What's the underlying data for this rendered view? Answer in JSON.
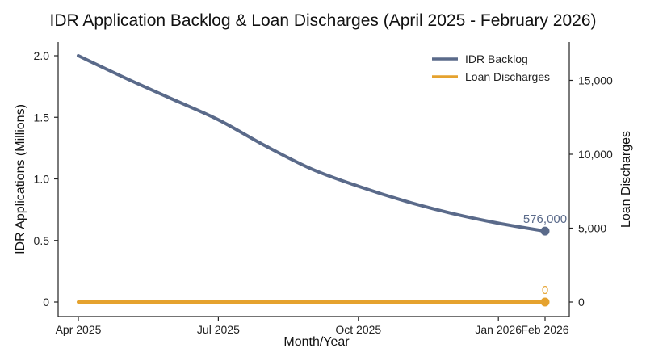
{
  "chart_data": {
    "type": "line",
    "title": "IDR Application Backlog & Loan Discharges (April 2025 - February 2026)",
    "xlabel": "Month/Year",
    "ylabel_left": "IDR Applications (Millions)",
    "ylabel_right": "Loan Discharges",
    "x": [
      "2025-04",
      "2025-05",
      "2025-06",
      "2025-07",
      "2025-08",
      "2025-09",
      "2025-10",
      "2025-11",
      "2025-12",
      "2026-01",
      "2026-02"
    ],
    "x_ticks": [
      {
        "x": "2025-04",
        "label": "Apr 2025"
      },
      {
        "x": "2025-07",
        "label": "Jul 2025"
      },
      {
        "x": "2025-10",
        "label": "Oct 2025"
      },
      {
        "x": "2026-01",
        "label": "Jan 2026"
      },
      {
        "x": "2026-02",
        "label": "Feb 2026"
      }
    ],
    "y_left": {
      "lim": [
        0,
        2.0
      ],
      "ticks": [
        0,
        0.5,
        1.0,
        1.5,
        2.0
      ],
      "tick_labels": [
        "0",
        "0.5",
        "1.0",
        "1.5",
        "2.0"
      ]
    },
    "y_right": {
      "lim": [
        0,
        16666
      ],
      "ticks": [
        0,
        5000,
        10000,
        15000
      ],
      "tick_labels": [
        "0",
        "5,000",
        "10,000",
        "15,000"
      ]
    },
    "series": [
      {
        "name": "IDR Backlog",
        "axis": "left",
        "color": "#5a6a8a",
        "values": [
          2.0,
          1.82,
          1.65,
          1.48,
          1.27,
          1.08,
          0.94,
          0.82,
          0.72,
          0.64,
          0.576
        ],
        "end_label": "576,000"
      },
      {
        "name": "Loan Discharges",
        "axis": "right",
        "color": "#e5a22e",
        "values": [
          0,
          0,
          0,
          0,
          0,
          0,
          0,
          0,
          0,
          0,
          0
        ],
        "end_label": "0"
      }
    ],
    "legend": "top-right",
    "grid": false
  }
}
